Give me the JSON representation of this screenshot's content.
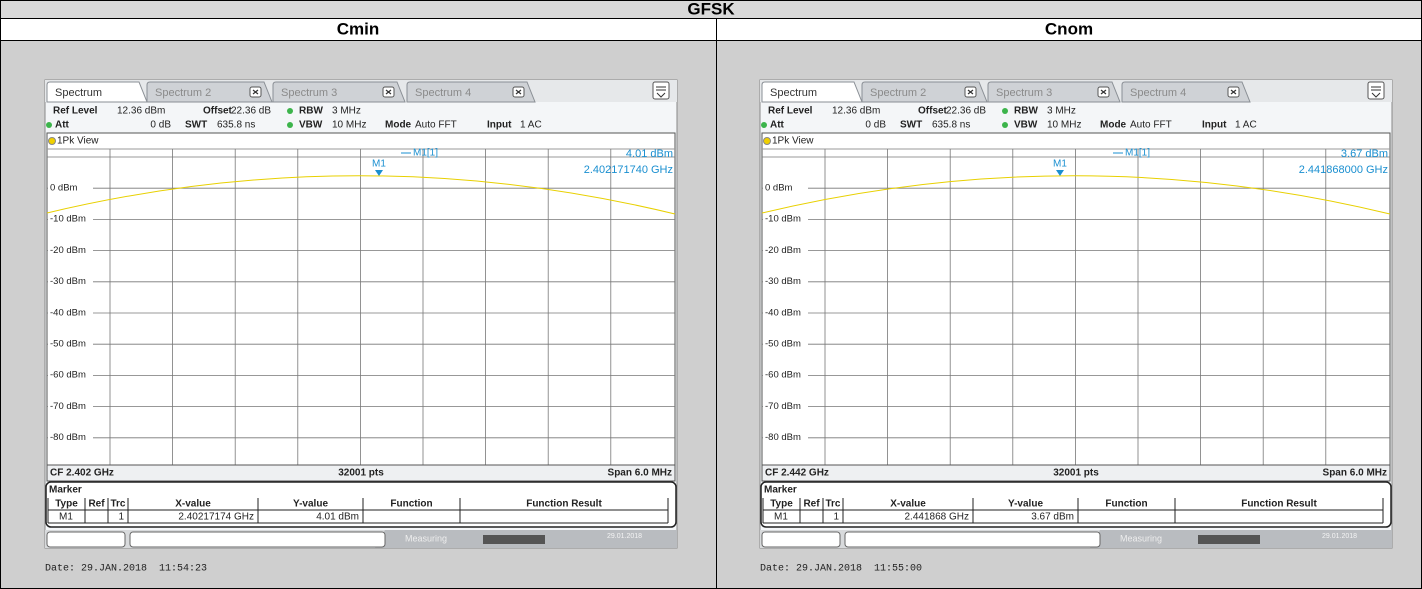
{
  "header": {
    "title": "GFSK"
  },
  "panels": [
    {
      "heading": "Cmin",
      "tabs": [
        "Spectrum",
        "Spectrum 2",
        "Spectrum 3",
        "Spectrum 4"
      ],
      "settings": {
        "ref_level_label": "Ref Level",
        "ref_level": "12.36 dBm",
        "offset_label": "Offset",
        "offset": "22.36 dB",
        "rbw_label": "RBW",
        "rbw": "3 MHz",
        "att_label": "Att",
        "att": "0 dB",
        "swt_label": "SWT",
        "swt": "635.8 ns",
        "vbw_label": "VBW",
        "vbw": "10 MHz",
        "mode_label": "Mode",
        "mode": "Auto FFT",
        "input_label": "Input",
        "input": "1 AC"
      },
      "view": "1Pk View",
      "y_labels": [
        "0 dBm",
        "-10 dBm",
        "-20 dBm",
        "-30 dBm",
        "-40 dBm",
        "-50 dBm",
        "-60 dBm",
        "-70 dBm",
        "-80 dBm"
      ],
      "marker": {
        "label": "M1",
        "readout": "M1[1]",
        "level": "4.01 dBm",
        "frequency": "2.402171740 GHz"
      },
      "footer": {
        "center": "CF 2.402 GHz",
        "points": "32001 pts",
        "span": "Span 6.0 MHz"
      },
      "marker_table": {
        "title": "Marker",
        "columns": [
          "Type",
          "Ref",
          "Trc",
          "X-value",
          "Y-value",
          "Function",
          "Function Result"
        ],
        "row": {
          "type": "M1",
          "trc": "1",
          "x_value": "2.40217174 GHz",
          "y_value": "4.01 dBm"
        }
      },
      "status": {
        "state": "Measuring",
        "date": "29.01.2018"
      },
      "timestamp": "Date: 29.JAN.2018  11:54:23"
    },
    {
      "heading": "Cnom",
      "tabs": [
        "Spectrum",
        "Spectrum 2",
        "Spectrum 3",
        "Spectrum 4"
      ],
      "settings": {
        "ref_level_label": "Ref Level",
        "ref_level": "12.36 dBm",
        "offset_label": "Offset",
        "offset": "22.36 dB",
        "rbw_label": "RBW",
        "rbw": "3 MHz",
        "att_label": "Att",
        "att": "0 dB",
        "swt_label": "SWT",
        "swt": "635.8 ns",
        "vbw_label": "VBW",
        "vbw": "10 MHz",
        "mode_label": "Mode",
        "mode": "Auto FFT",
        "input_label": "Input",
        "input": "1 AC"
      },
      "view": "1Pk View",
      "y_labels": [
        "0 dBm",
        "-10 dBm",
        "-20 dBm",
        "-30 dBm",
        "-40 dBm",
        "-50 dBm",
        "-60 dBm",
        "-70 dBm",
        "-80 dBm"
      ],
      "marker": {
        "label": "M1",
        "readout": "M1[1]",
        "level": "3.67 dBm",
        "frequency": "2.441868000 GHz"
      },
      "footer": {
        "center": "CF 2.442 GHz",
        "points": "32001 pts",
        "span": "Span 6.0 MHz"
      },
      "marker_table": {
        "title": "Marker",
        "columns": [
          "Type",
          "Ref",
          "Trc",
          "X-value",
          "Y-value",
          "Function",
          "Function Result"
        ],
        "row": {
          "type": "M1",
          "trc": "1",
          "x_value": "2.441868 GHz",
          "y_value": "3.67 dBm"
        }
      },
      "status": {
        "state": "Measuring",
        "date": "29.01.2018"
      },
      "timestamp": "Date: 29.JAN.2018  11:55:00"
    }
  ]
}
